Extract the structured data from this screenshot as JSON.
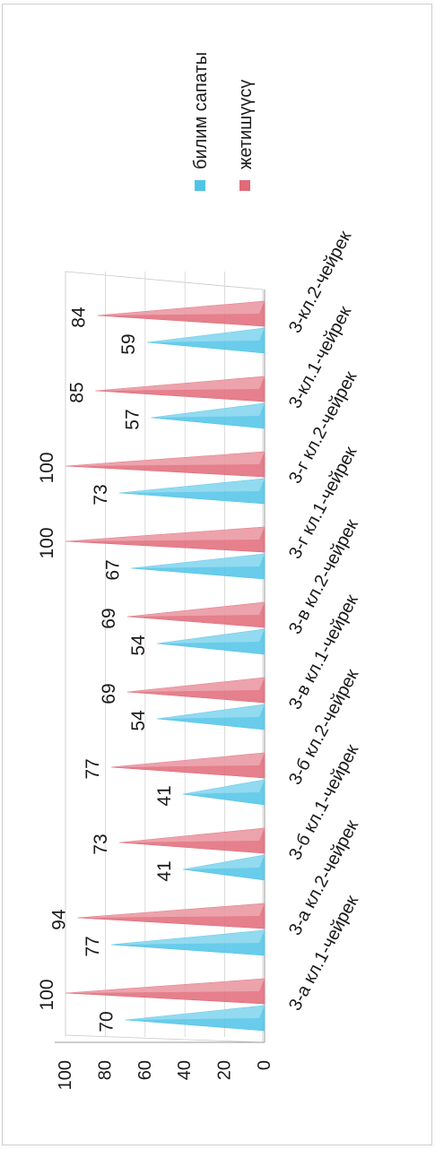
{
  "chart_data": {
    "type": "bar",
    "title": "",
    "xlabel": "",
    "ylabel": "",
    "ylim": [
      0,
      100
    ],
    "y_ticks": [
      "0",
      "20",
      "40",
      "60",
      "80",
      "100"
    ],
    "grid": true,
    "legend_position": "right",
    "categories": [
      "3-а кл.1-чейрек",
      "3-а кл.2-чейрек",
      "3-б кл.1-чейрек",
      "3-б кл.2-чейрек",
      "3-в кл.1-чейрек",
      "3-в кл.2-чейрек",
      "3-г кл.1-чейрек",
      "3-г кл.2-чейрек",
      "3-кл.1-чейрек",
      "3-кл.2-чейрек"
    ],
    "series": [
      {
        "name": "билим сапаты",
        "color": "#4fc3e8",
        "values": [
          70,
          77,
          41,
          41,
          54,
          54,
          67,
          73,
          57,
          59
        ]
      },
      {
        "name": "жетишүүсү",
        "color": "#e06a78",
        "values": [
          100,
          94,
          73,
          77,
          69,
          69,
          100,
          100,
          85,
          84
        ]
      }
    ]
  }
}
